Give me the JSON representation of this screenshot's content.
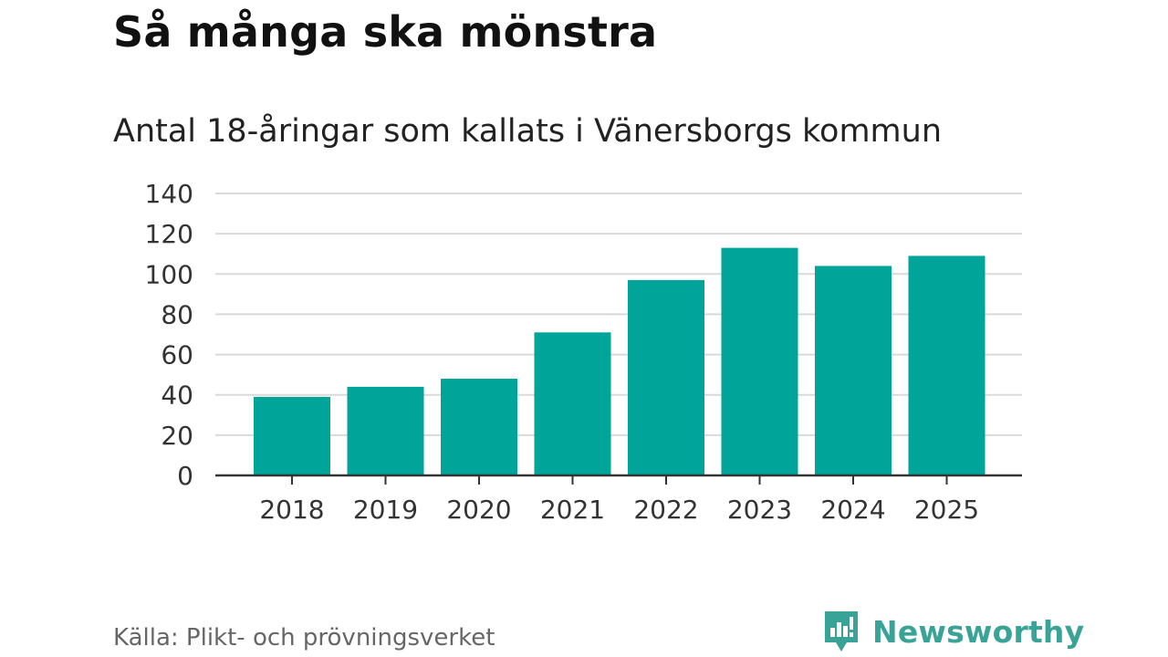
{
  "title": "Så många ska mönstra",
  "subtitle": "Antal 18-åringar som kallats i Vänersborgs kommun",
  "source": "Källa: Plikt- och prövningsverket",
  "brand": {
    "name": "Newsworthy",
    "color": "#39a397",
    "icon": "newsworthy-logo-icon"
  },
  "chart_data": {
    "type": "bar",
    "categories": [
      "2018",
      "2019",
      "2020",
      "2021",
      "2022",
      "2023",
      "2024",
      "2025"
    ],
    "values": [
      39,
      44,
      48,
      71,
      97,
      113,
      104,
      109
    ],
    "ylim": [
      0,
      140
    ],
    "yticks": [
      0,
      20,
      40,
      60,
      80,
      100,
      120,
      140
    ],
    "bar_color": "#00a499",
    "grid": true
  }
}
